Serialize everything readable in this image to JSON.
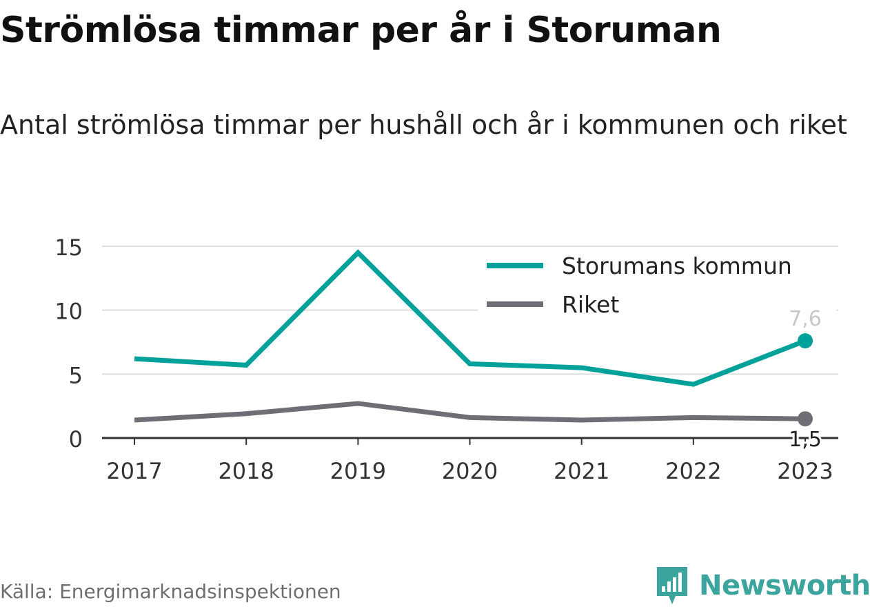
{
  "header": {
    "title": "Strömlösa timmar per år i Storuman",
    "subtitle": "Antal strömlösa timmar per hushåll och år i kommunen och riket"
  },
  "footer": {
    "source": "Källa: Energimarknadsinspektionen",
    "brand": "Newsworthy",
    "brand_icon": "newsworthy-logo-icon",
    "brand_color": "#3aa49d"
  },
  "chart_data": {
    "type": "line",
    "title": "Strömlösa timmar per år i Storuman",
    "subtitle": "Antal strömlösa timmar per hushåll och år i kommunen och riket",
    "xlabel": "",
    "ylabel": "",
    "categories": [
      "2017",
      "2018",
      "2019",
      "2020",
      "2021",
      "2022",
      "2023"
    ],
    "ylim": [
      0,
      15
    ],
    "yticks": [
      0,
      5,
      10,
      15
    ],
    "grid": true,
    "legend": "top-right",
    "series": [
      {
        "name": "Storumans kommun",
        "color": "#00a19a",
        "values": [
          6.2,
          5.7,
          14.5,
          5.8,
          5.5,
          4.2,
          7.6
        ],
        "end_label": "7,6"
      },
      {
        "name": "Riket",
        "color": "#6f6e74",
        "values": [
          1.4,
          1.9,
          2.7,
          1.6,
          1.4,
          1.6,
          1.5
        ],
        "end_label": "1,5"
      }
    ]
  }
}
